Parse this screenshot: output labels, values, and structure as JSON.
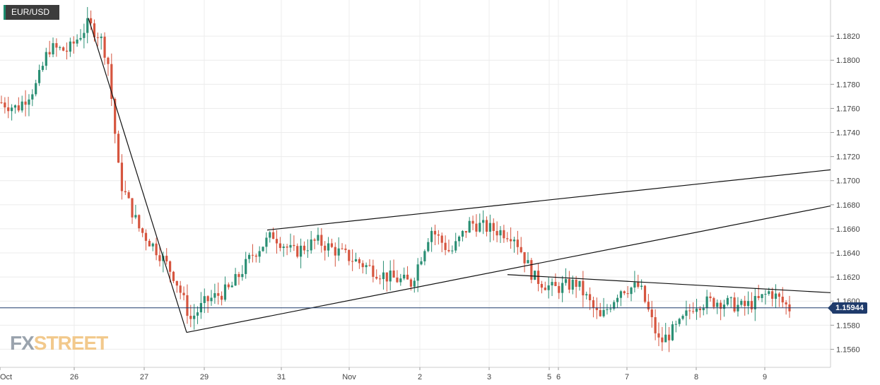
{
  "symbol": "EUR/USD",
  "logo": {
    "fx": "FX",
    "street": "STREET"
  },
  "current_price": "1.15944",
  "colors": {
    "up": "#2a8f74",
    "down": "#d6553f",
    "grid": "#ececec",
    "current_line": "#1f3b6b",
    "trendline": "#111111"
  },
  "chart_data": {
    "type": "candlestick",
    "title": "",
    "ylim": [
      1.1545,
      1.185
    ],
    "y_ticks": [
      "1.1820",
      "1.1800",
      "1.1780",
      "1.1760",
      "1.1740",
      "1.1720",
      "1.1700",
      "1.1680",
      "1.1660",
      "1.1640",
      "1.1620",
      "1.1600",
      "1.1580",
      "1.1560"
    ],
    "x_ticks": [
      "Oct",
      "26",
      "27",
      "29",
      "31",
      "Nov",
      "2",
      "3",
      "5",
      "6",
      "7",
      "8",
      "9"
    ],
    "current_value": 1.15944,
    "grid": true,
    "trendlines": [
      {
        "name": "decline",
        "from": [
          0.0,
          1.1835
        ],
        "to": [
          0.24,
          1.1574
        ]
      },
      {
        "name": "upper-channel",
        "from": [
          0.34,
          1.1659
        ],
        "to": [
          1.0,
          1.1709
        ]
      },
      {
        "name": "lower-channel",
        "from": [
          0.24,
          1.1574
        ],
        "to": [
          1.0,
          1.1679
        ]
      },
      {
        "name": "resistance",
        "from": [
          0.66,
          1.1622
        ],
        "to": [
          1.0,
          1.1607
        ]
      }
    ],
    "anchors": [
      [
        0.0,
        1.1765
      ],
      [
        0.02,
        1.176
      ],
      [
        0.045,
        1.178
      ],
      [
        0.06,
        1.181
      ],
      [
        0.085,
        1.1808
      ],
      [
        0.11,
        1.183
      ],
      [
        0.125,
        1.182
      ],
      [
        0.135,
        1.18
      ],
      [
        0.15,
        1.17
      ],
      [
        0.175,
        1.166
      ],
      [
        0.2,
        1.164
      ],
      [
        0.22,
        1.162
      ],
      [
        0.24,
        1.1585
      ],
      [
        0.26,
        1.16
      ],
      [
        0.29,
        1.161
      ],
      [
        0.32,
        1.164
      ],
      [
        0.345,
        1.1655
      ],
      [
        0.37,
        1.164
      ],
      [
        0.4,
        1.165
      ],
      [
        0.43,
        1.164
      ],
      [
        0.46,
        1.163
      ],
      [
        0.49,
        1.162
      ],
      [
        0.52,
        1.1615
      ],
      [
        0.545,
        1.166
      ],
      [
        0.57,
        1.164
      ],
      [
        0.595,
        1.1665
      ],
      [
        0.62,
        1.166
      ],
      [
        0.65,
        1.1655
      ],
      [
        0.675,
        1.162
      ],
      [
        0.7,
        1.161
      ],
      [
        0.73,
        1.1615
      ],
      [
        0.76,
        1.1585
      ],
      [
        0.785,
        1.161
      ],
      [
        0.81,
        1.1612
      ],
      [
        0.835,
        1.1565
      ],
      [
        0.86,
        1.158
      ],
      [
        0.88,
        1.1598
      ],
      [
        0.91,
        1.16
      ],
      [
        0.94,
        1.1595
      ],
      [
        0.96,
        1.16
      ],
      [
        0.975,
        1.1608
      ],
      [
        1.0,
        1.1594
      ]
    ]
  }
}
